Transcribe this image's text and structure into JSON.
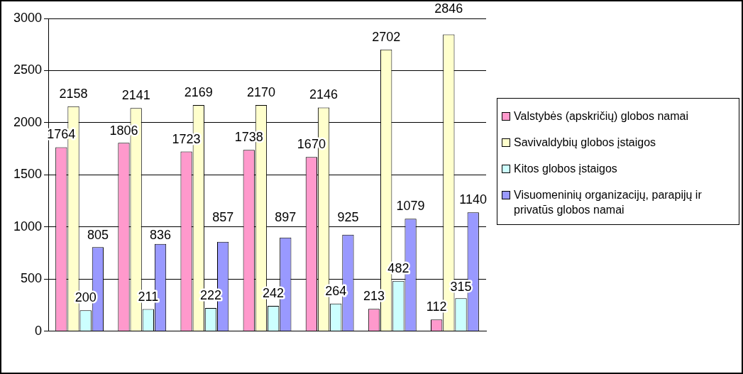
{
  "chart_data": {
    "type": "bar",
    "categories": [
      null,
      null,
      null,
      null,
      null,
      null,
      null
    ],
    "series": [
      {
        "name": "Valstybės (apskričių) globos namai",
        "color": "#ff99cc",
        "values": [
          1764,
          1806,
          1723,
          1738,
          1670,
          213,
          112
        ]
      },
      {
        "name": "Savivaldybių globos įstaigos",
        "color": "#ffffcc",
        "values": [
          2158,
          2141,
          2169,
          2170,
          2146,
          2702,
          2846
        ]
      },
      {
        "name": "Kitos globos įstaigos",
        "color": "#ccffff",
        "values": [
          200,
          211,
          222,
          242,
          264,
          482,
          315
        ]
      },
      {
        "name": "Visuomeninių organizacijų, parapijų ir privatūs globos namai",
        "color": "#9999ff",
        "values": [
          805,
          836,
          857,
          897,
          925,
          1079,
          1140
        ]
      }
    ],
    "ylim": [
      0,
      3000
    ],
    "yticks": [
      0,
      500,
      1000,
      1500,
      2000,
      2500,
      3000
    ],
    "grid": "y",
    "legend": "right",
    "data_labels": true
  }
}
